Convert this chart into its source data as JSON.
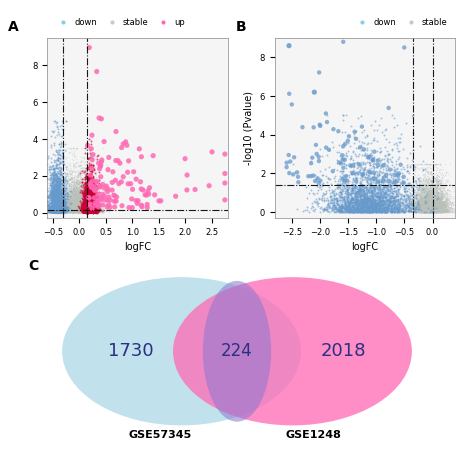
{
  "panel_A": {
    "title": "A",
    "xlabel": "logFC",
    "ylabel": "",
    "xlim": [
      -0.6,
      2.8
    ],
    "ylim": [
      -0.3,
      9.5
    ],
    "hline_y": 0.15,
    "vline_x1": -0.3,
    "vline_x2": 0.15,
    "legend_labels": [
      "down",
      "stable",
      "up"
    ],
    "legend_colors": [
      "#87CEEB",
      "#C8C8C8",
      "#FF69B4"
    ],
    "down_color": "#6699CC",
    "stable_color": "#B8C0B8",
    "up_dense_color": "#CC0033",
    "up_large_color": "#FF69B4",
    "seed_A": 42
  },
  "panel_B": {
    "title": "B",
    "xlabel": "logFC",
    "ylabel": "-log10 (Pvalue)",
    "xlim": [
      -2.8,
      0.4
    ],
    "ylim": [
      -0.3,
      9.0
    ],
    "hline_y": 1.4,
    "vline_x1": -0.35,
    "vline_x2": 0.0,
    "down_color": "#6699CC",
    "stable_color": "#B8C0B8",
    "legend_labels": [
      "down",
      "stable"
    ],
    "legend_colors": [
      "#87CEEB",
      "#C8C8C8"
    ],
    "seed_B": 99
  },
  "panel_C": {
    "title": "C",
    "left_label": "GSE57345",
    "right_label": "GSE1248",
    "left_count": "1730",
    "overlap_count": "224",
    "right_count": "2018",
    "left_color": "#ADD8E6",
    "right_color": "#FF69B4",
    "overlap_color": "#8B78D0",
    "text_color": "#2B3080"
  },
  "fig_bg": "#FFFFFF"
}
